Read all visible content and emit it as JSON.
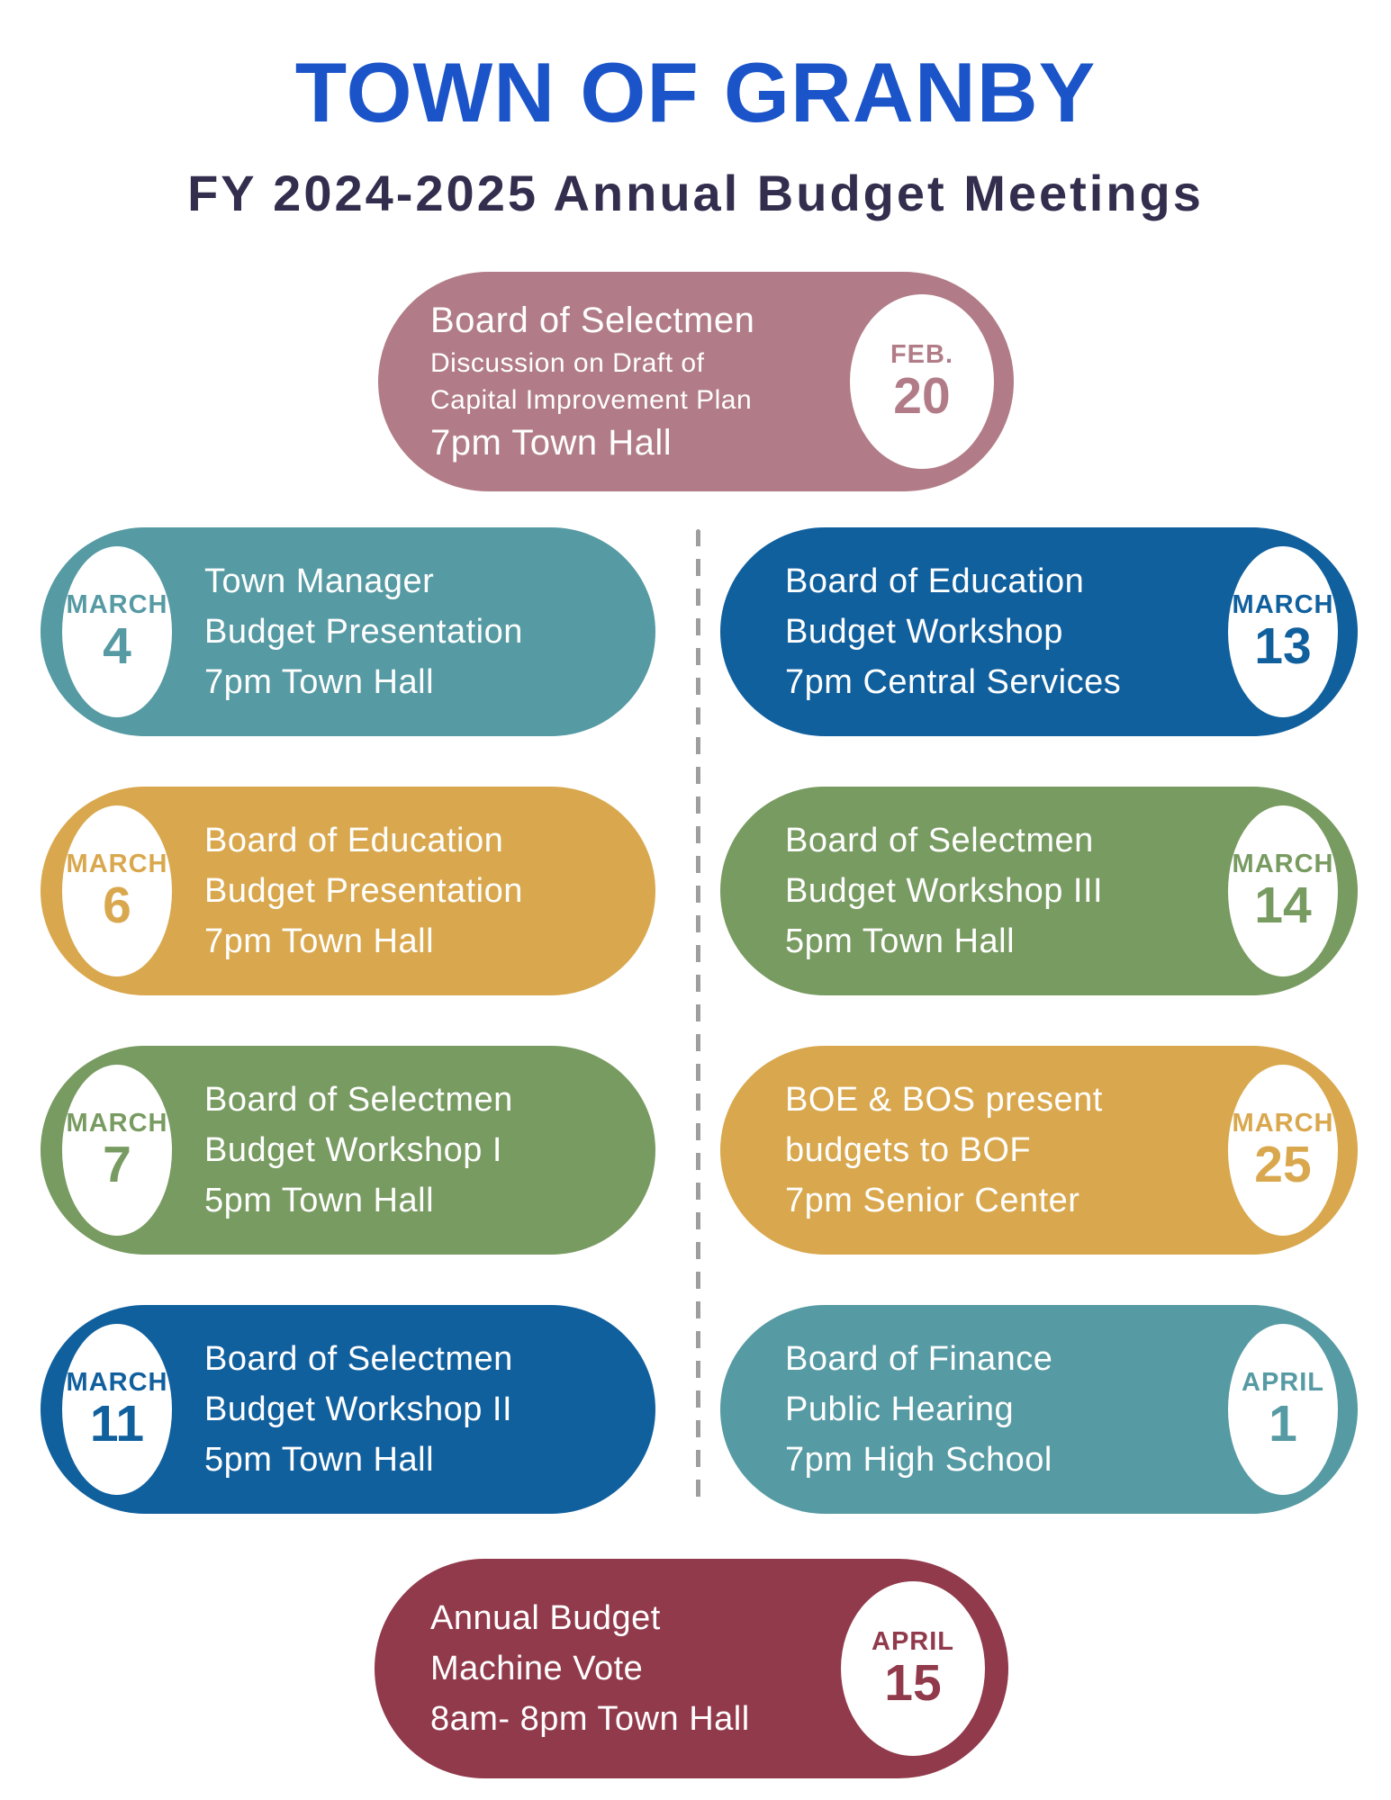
{
  "page": {
    "title": "TOWN OF GRANBY",
    "subtitle": "FY 2024-2025 Annual Budget Meetings"
  },
  "colors": {
    "title_blue": "#1b54c9",
    "subtitle_navy": "#332d4e",
    "mauve": "#b17c87",
    "teal": "#569aa3",
    "blue": "#11609e",
    "gold": "#d9a84e",
    "green": "#789b61",
    "maroon": "#913a4b",
    "divider_gray": "#9e9e9e",
    "white": "#ffffff"
  },
  "meetings": {
    "top": {
      "date_label": "FEB.",
      "date_number": "20",
      "color_key": "mauve",
      "lines": [
        "Board of Selectmen",
        "Discussion on Draft of",
        "Capital Improvement Plan",
        "7pm Town Hall"
      ]
    },
    "left_column": [
      {
        "date_label": "MARCH",
        "date_number": "4",
        "color_key": "teal",
        "lines": [
          "Town Manager",
          "Budget Presentation",
          "7pm Town Hall"
        ]
      },
      {
        "date_label": "MARCH",
        "date_number": "6",
        "color_key": "gold",
        "lines": [
          "Board of Education",
          "Budget Presentation",
          "7pm Town Hall"
        ]
      },
      {
        "date_label": "MARCH",
        "date_number": "7",
        "color_key": "green",
        "lines": [
          "Board of Selectmen",
          "Budget Workshop I",
          "5pm Town Hall"
        ]
      },
      {
        "date_label": "MARCH",
        "date_number": "11",
        "color_key": "blue",
        "lines": [
          "Board of Selectmen",
          "Budget Workshop II",
          "5pm Town Hall"
        ]
      }
    ],
    "right_column": [
      {
        "date_label": "MARCH",
        "date_number": "13",
        "color_key": "blue",
        "lines": [
          "Board of Education",
          "Budget Workshop",
          "7pm Central Services"
        ]
      },
      {
        "date_label": "MARCH",
        "date_number": "14",
        "color_key": "green",
        "lines": [
          "Board of Selectmen",
          "Budget Workshop III",
          "5pm Town Hall"
        ]
      },
      {
        "date_label": "MARCH",
        "date_number": "25",
        "color_key": "gold",
        "lines": [
          "BOE & BOS present",
          "budgets to BOF",
          "7pm Senior Center"
        ]
      },
      {
        "date_label": "APRIL",
        "date_number": "1",
        "color_key": "teal",
        "lines": [
          "Board of Finance",
          "Public Hearing",
          "7pm High School"
        ]
      }
    ],
    "bottom": {
      "date_label": "APRIL",
      "date_number": "15",
      "color_key": "maroon",
      "lines": [
        "Annual Budget",
        "Machine Vote",
        "8am- 8pm Town Hall"
      ]
    }
  }
}
